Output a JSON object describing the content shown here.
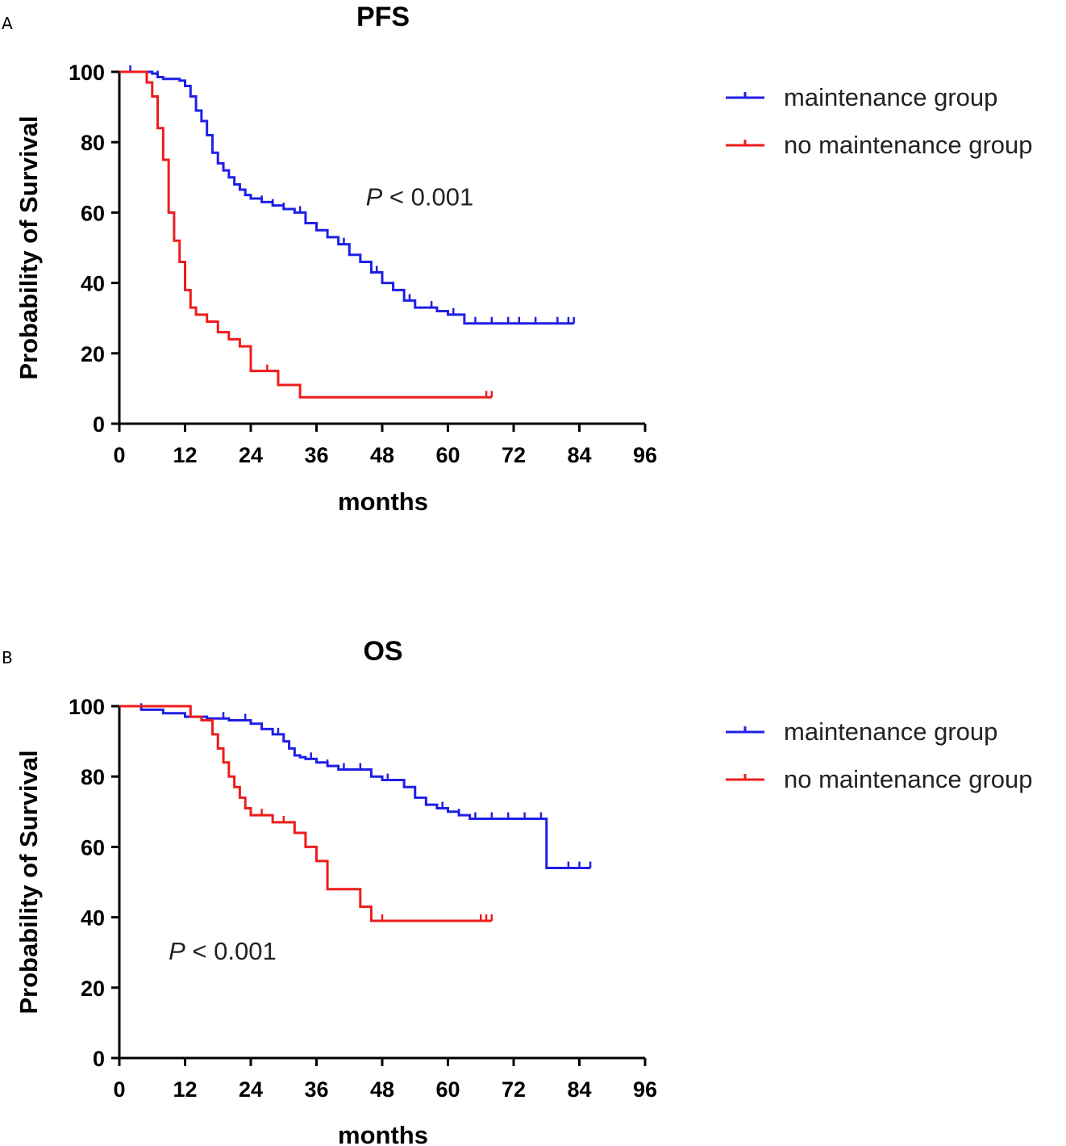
{
  "chart_data": [
    {
      "type": "line",
      "panel": "A",
      "title": "PFS",
      "xlabel": "months",
      "ylabel": "Probability of Survival",
      "xlim": [
        0,
        96
      ],
      "ylim": [
        0,
        100
      ],
      "xticks": [
        0,
        12,
        24,
        36,
        48,
        60,
        72,
        84,
        96
      ],
      "yticks": [
        0,
        20,
        40,
        60,
        80,
        100
      ],
      "legend_position": "right",
      "annotation": {
        "prefix": "P",
        "text": " < 0.001",
        "x": 45,
        "y": 62
      },
      "series": [
        {
          "name": "maintenance group",
          "color": "#1f1fe6",
          "x": [
            0,
            3,
            6,
            7,
            8,
            9,
            10,
            11,
            12,
            13,
            14,
            15,
            16,
            17,
            18,
            19,
            20,
            21,
            22,
            23,
            24,
            26,
            28,
            30,
            32,
            34,
            36,
            38,
            40,
            42,
            44,
            46,
            48,
            50,
            52,
            54,
            56,
            58,
            60,
            62,
            63,
            66,
            70,
            74,
            78,
            83
          ],
          "y": [
            100,
            100,
            99.5,
            98.5,
            98,
            98,
            98,
            97.5,
            96,
            93,
            89,
            86,
            82,
            77,
            74,
            72,
            70,
            68,
            66.5,
            65,
            64,
            63,
            62,
            61,
            60,
            57,
            55,
            53,
            51,
            48,
            46,
            43,
            40,
            38,
            35,
            33,
            33,
            32,
            31,
            31,
            28.5,
            28.5,
            28.5,
            28.5,
            28.5,
            28.5
          ],
          "censored_x": [
            2,
            7,
            18,
            22,
            26,
            28,
            30,
            33,
            36,
            38,
            41,
            44,
            47,
            53,
            57,
            61,
            65,
            68,
            71,
            73,
            76,
            80,
            82,
            83
          ]
        },
        {
          "name": "no maintenance group",
          "color": "#ee1c1c",
          "x": [
            0,
            4,
            5,
            6,
            7,
            8,
            9,
            10,
            11,
            12,
            13,
            14,
            16,
            18,
            20,
            22,
            24,
            28,
            29,
            30,
            33,
            40,
            50,
            60,
            68
          ],
          "y": [
            100,
            100,
            97,
            93,
            84,
            75,
            60,
            52,
            46,
            38,
            33,
            31,
            29,
            26,
            24,
            22,
            15,
            15,
            11,
            11,
            7.5,
            7.5,
            7.5,
            7.5,
            7.5
          ],
          "censored_x": [
            5,
            27,
            67,
            68
          ]
        }
      ]
    },
    {
      "type": "line",
      "panel": "B",
      "title": "OS",
      "xlabel": "months",
      "ylabel": "Probability of Survival",
      "xlim": [
        0,
        96
      ],
      "ylim": [
        0,
        100
      ],
      "xticks": [
        0,
        12,
        24,
        36,
        48,
        60,
        72,
        84,
        96
      ],
      "yticks": [
        0,
        20,
        40,
        60,
        80,
        100
      ],
      "legend_position": "right",
      "annotation": {
        "prefix": "P",
        "text": " < 0.001",
        "x": 9,
        "y": 28
      },
      "series": [
        {
          "name": "maintenance group",
          "color": "#1f1fe6",
          "x": [
            0,
            4,
            8,
            12,
            16,
            20,
            24,
            26,
            28,
            30,
            31,
            32,
            33,
            34,
            36,
            38,
            40,
            42,
            44,
            46,
            48,
            50,
            52,
            54,
            56,
            58,
            60,
            62,
            64,
            66,
            70,
            74,
            78,
            79,
            82,
            86
          ],
          "y": [
            100,
            99,
            98,
            97,
            96.5,
            96,
            95,
            93.5,
            92,
            90,
            88,
            86,
            85.5,
            85,
            84,
            83,
            82,
            82,
            82,
            80,
            79,
            79,
            77,
            74,
            72,
            71,
            70,
            69,
            68,
            68,
            68,
            68,
            54,
            54,
            54,
            54
          ],
          "censored_x": [
            4,
            19,
            23,
            26,
            29,
            35,
            38,
            41,
            44,
            46,
            49,
            52,
            56,
            59,
            62,
            65,
            68,
            71,
            74,
            77,
            82,
            84,
            86
          ]
        },
        {
          "name": "no maintenance group",
          "color": "#ee1c1c",
          "x": [
            0,
            12,
            13,
            15,
            17,
            18,
            19,
            20,
            21,
            22,
            23,
            24,
            26,
            28,
            30,
            32,
            34,
            36,
            38,
            40,
            42,
            44,
            46,
            50,
            60,
            68
          ],
          "y": [
            100,
            100,
            97,
            96,
            92,
            88,
            84,
            80,
            77,
            74,
            71,
            69,
            69,
            67,
            67,
            64,
            60,
            56,
            48,
            48,
            48,
            43,
            39,
            39,
            39,
            39
          ],
          "censored_x": [
            26,
            28,
            30,
            44,
            48,
            66,
            67,
            68
          ]
        }
      ]
    }
  ]
}
